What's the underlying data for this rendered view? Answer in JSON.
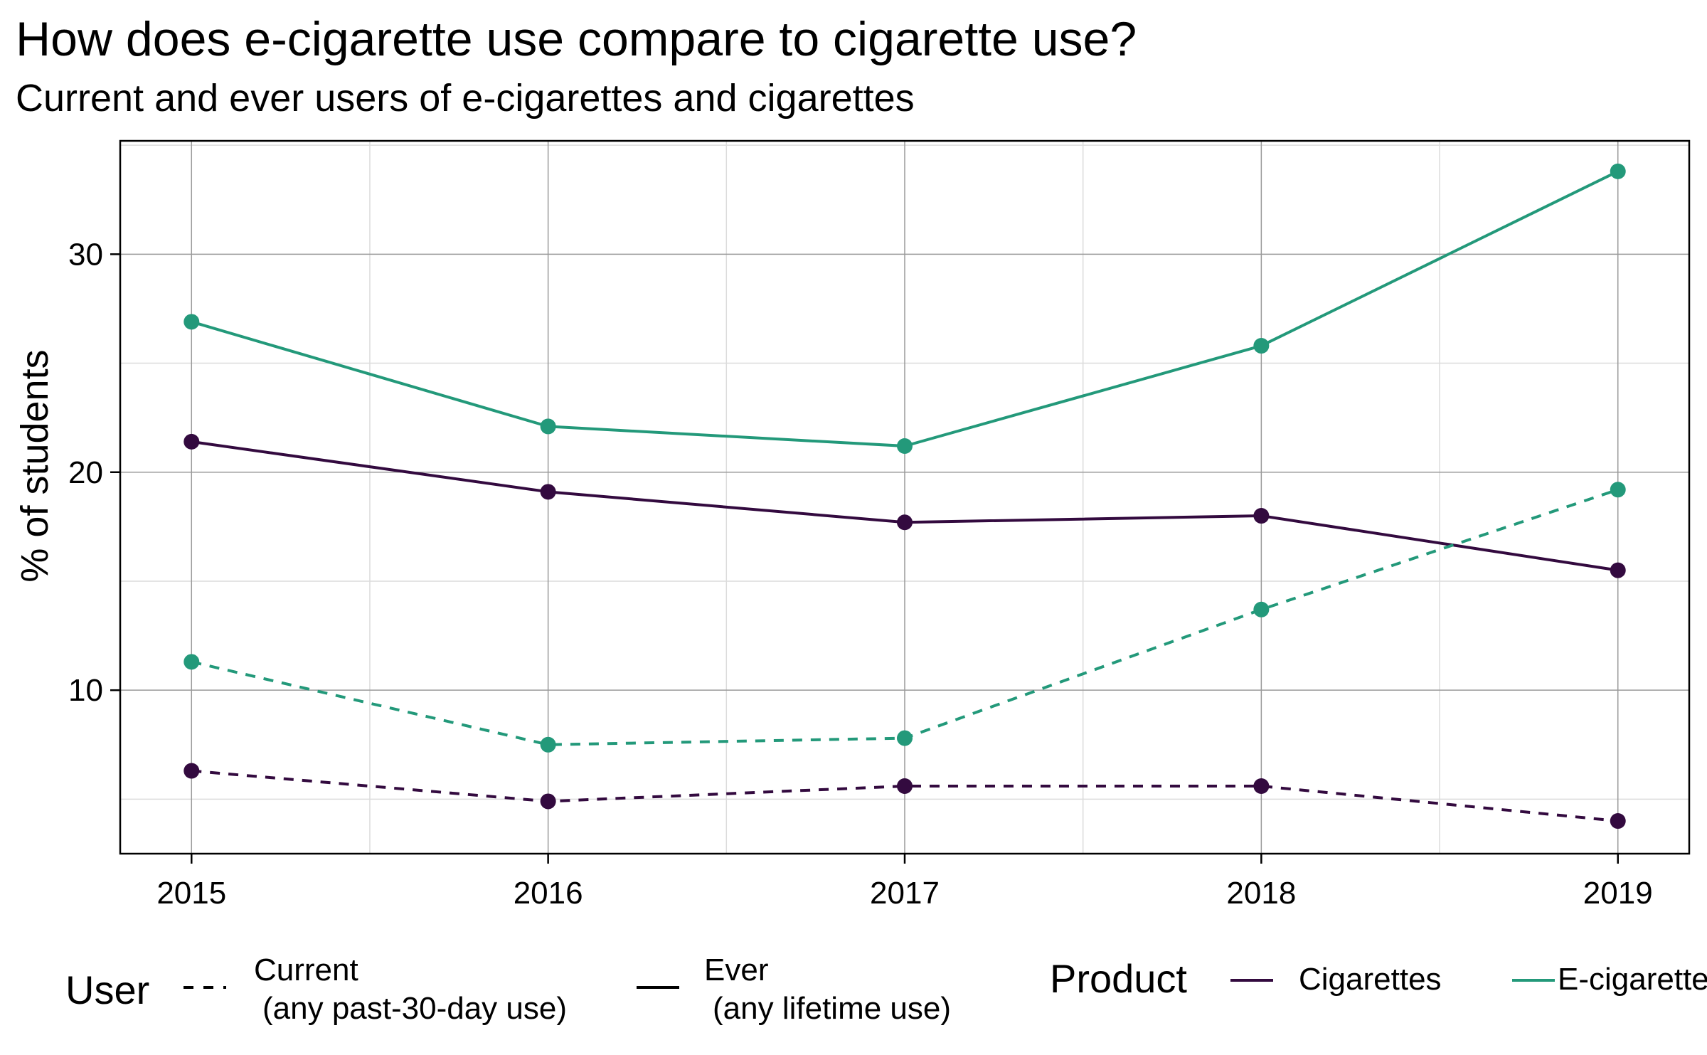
{
  "chart_data": {
    "type": "line",
    "title": "How does e-cigarette use compare to cigarette use?",
    "subtitle": "Current and ever users of e-cigarettes and cigarettes",
    "xlabel": "",
    "ylabel": "% of students",
    "x": [
      "2015",
      "2016",
      "2017",
      "2018",
      "2019"
    ],
    "xlim": [
      2014.8,
      2019.2
    ],
    "ylim": [
      2.5,
      35.2
    ],
    "yticks": [
      10,
      20,
      30
    ],
    "grid": true,
    "series": [
      {
        "product": "Cigarettes",
        "user": "Current",
        "values": [
          6.3,
          4.9,
          5.6,
          5.6,
          4.0
        ]
      },
      {
        "product": "Cigarettes",
        "user": "Ever",
        "values": [
          21.4,
          19.1,
          17.7,
          18.0,
          15.5
        ]
      },
      {
        "product": "E-cigarettes",
        "user": "Current",
        "values": [
          11.3,
          7.5,
          7.8,
          13.7,
          19.2
        ]
      },
      {
        "product": "E-cigarettes",
        "user": "Ever",
        "values": [
          26.9,
          22.1,
          21.2,
          25.8,
          33.8
        ]
      }
    ],
    "legend": {
      "placement": "bottom",
      "user_title": "User",
      "user_items": [
        {
          "key": "Current",
          "line1": "Current",
          "line2": "(any past-30-day use)",
          "dash": true
        },
        {
          "key": "Ever",
          "line1": "Ever",
          "line2": "(any lifetime use)",
          "dash": false
        }
      ],
      "product_title": "Product",
      "product_items": [
        {
          "key": "Cigarettes",
          "label": "Cigarettes"
        },
        {
          "key": "E-cigarettes",
          "label": "E-cigarettes"
        }
      ]
    },
    "colors": {
      "Cigarettes": "#330a3f",
      "E-cigarettes": "#23997a"
    }
  }
}
